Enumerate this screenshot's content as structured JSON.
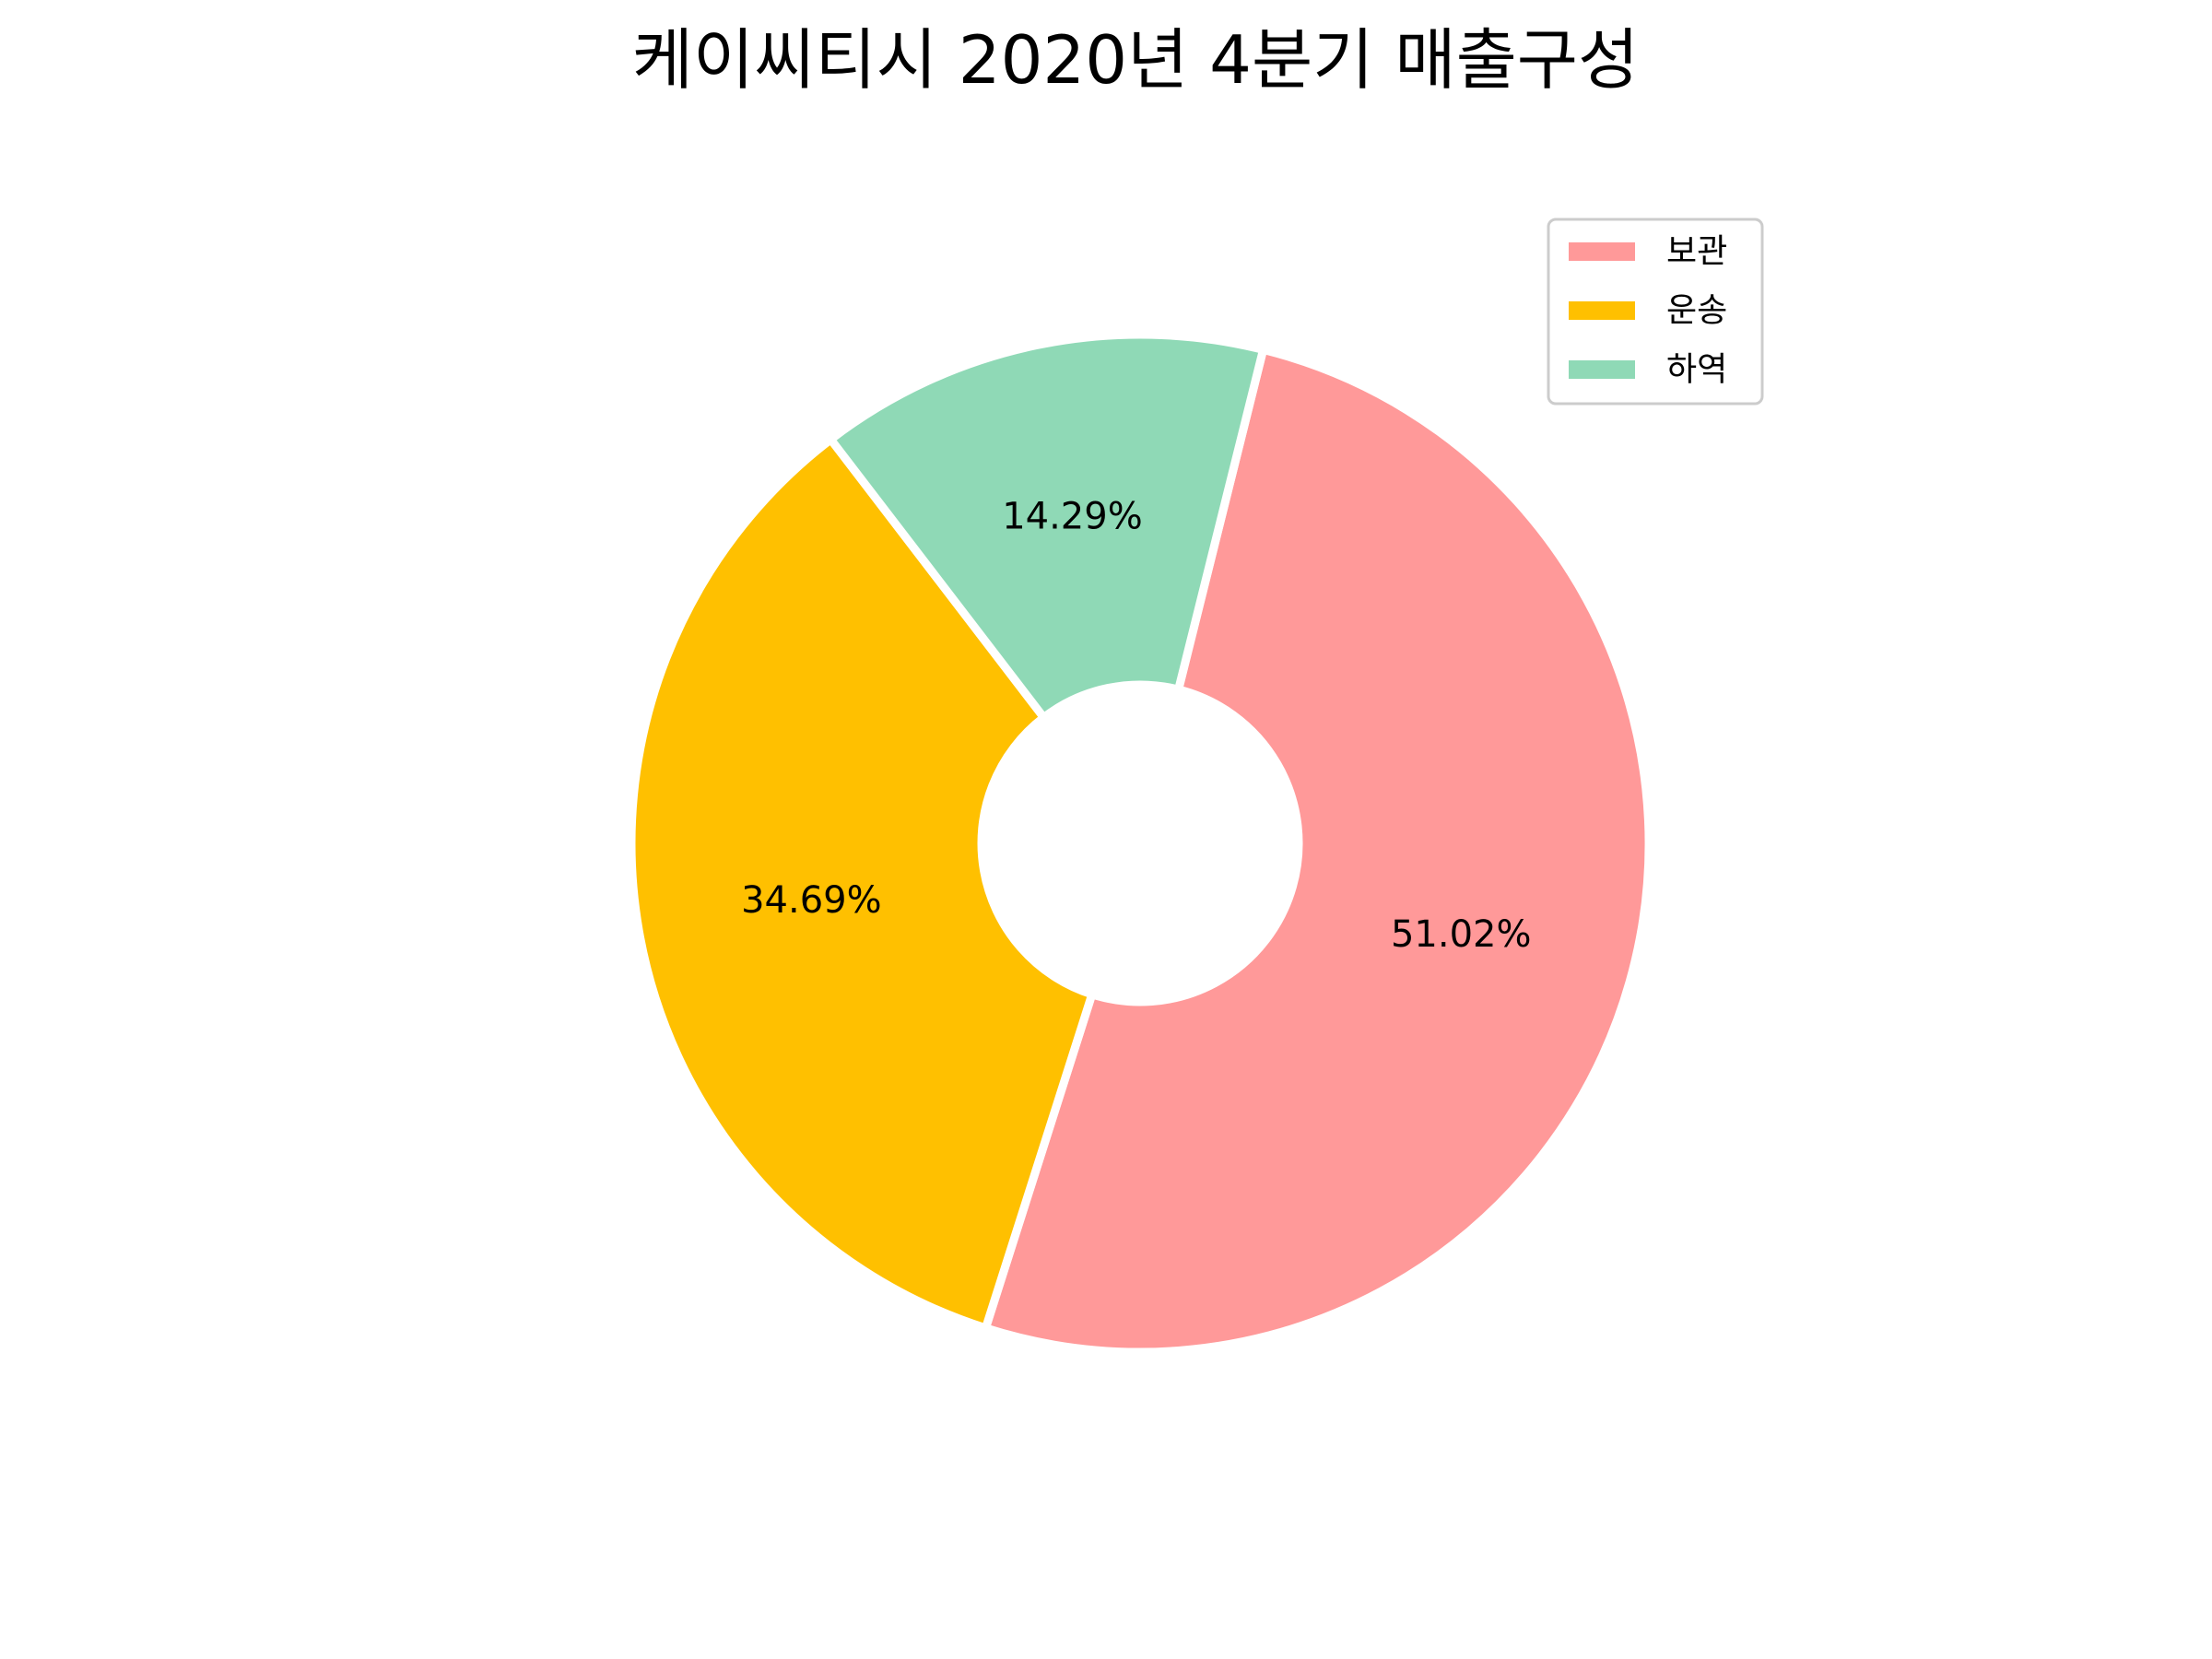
{
  "chart_data": {
    "type": "pie",
    "title": "케이씨티시 2020년 4분기 매출구성",
    "donut": true,
    "legend_position": "top-right",
    "categories": [
      "보관",
      "운송",
      "하역"
    ],
    "values": [
      51.02,
      34.69,
      14.29
    ],
    "value_labels": [
      "51.02%",
      "34.69%",
      "14.29%"
    ],
    "colors": [
      "#ff9999",
      "#ffc000",
      "#8fd9b6"
    ],
    "start_angle_deg": 76,
    "direction": "clockwise"
  }
}
